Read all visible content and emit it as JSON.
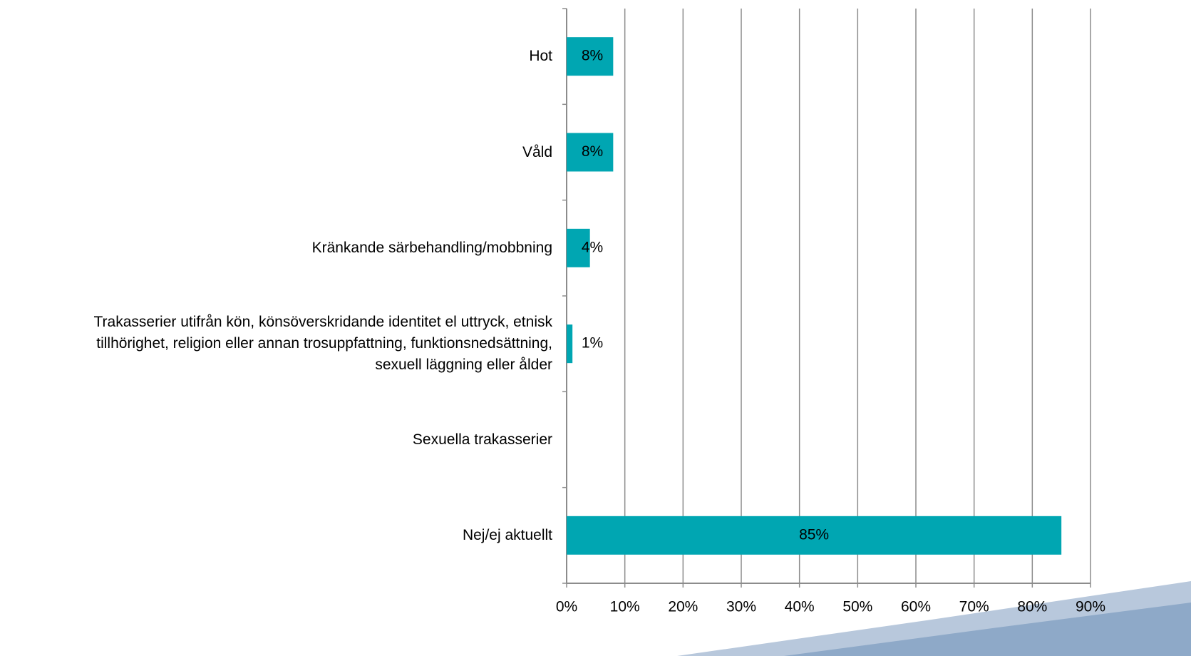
{
  "chart_data": {
    "type": "hbar",
    "categories": [
      "Hot",
      "Våld",
      "Kränkande särbehandling/mobbning",
      "Trakasserier utifrån kön, könsöverskridande identitet el uttryck, etnisk\ntillhörighet, religion eller annan trosuppfattning, funktionsnedsättning,\nsexuell läggning eller ålder",
      "Sexuella trakasserier",
      "Nej/ej aktuellt"
    ],
    "values": [
      8,
      8,
      4,
      1,
      null,
      85
    ],
    "value_labels": [
      "8%",
      "8%",
      "4%",
      "1%",
      null,
      "85%"
    ],
    "color": "#00a6b2",
    "xlim": [
      0,
      90
    ],
    "xticks": [
      {
        "value": 0,
        "label": "0%"
      },
      {
        "value": 10,
        "label": "10%"
      },
      {
        "value": 20,
        "label": "20%"
      },
      {
        "value": 30,
        "label": "30%"
      },
      {
        "value": 40,
        "label": "40%"
      },
      {
        "value": 50,
        "label": "50%"
      },
      {
        "value": 60,
        "label": "60%"
      },
      {
        "value": 70,
        "label": "70%"
      },
      {
        "value": 80,
        "label": "80%"
      },
      {
        "value": 90,
        "label": "90%"
      }
    ],
    "grid": true
  }
}
